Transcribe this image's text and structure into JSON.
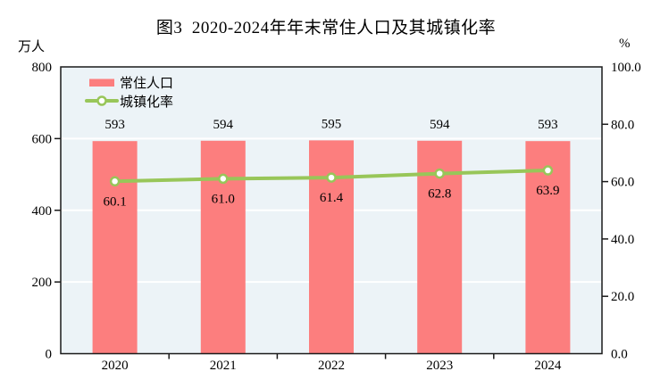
{
  "title": "图3  2020-2024年年末常住人口及其城镇化率",
  "chart_data": {
    "type": "bar",
    "subtype": "bar+line dual-axis",
    "categories": [
      "2020",
      "2021",
      "2022",
      "2023",
      "2024"
    ],
    "series": [
      {
        "name": "常住人口",
        "type": "bar",
        "axis": "left",
        "values": [
          593,
          594,
          595,
          594,
          593
        ],
        "value_labels": [
          "593",
          "594",
          "595",
          "594",
          "593"
        ],
        "color": "#FC7E7E"
      },
      {
        "name": "城镇化率",
        "type": "line",
        "axis": "right",
        "values": [
          60.1,
          61.0,
          61.4,
          62.8,
          63.9
        ],
        "value_labels": [
          "60.1",
          "61.0",
          "61.4",
          "62.8",
          "63.9"
        ],
        "color": "#98C659",
        "marker_fill": "#FFFFFF"
      }
    ],
    "left_axis": {
      "unit": "万人",
      "min": 0,
      "max": 800,
      "ticks": [
        0,
        200,
        400,
        600,
        800
      ],
      "tick_labels": [
        "0",
        "200",
        "400",
        "600",
        "800"
      ]
    },
    "right_axis": {
      "unit": "%",
      "min": 0,
      "max": 100,
      "ticks": [
        0,
        20,
        40,
        60,
        80,
        100
      ],
      "tick_labels": [
        "0.0",
        "20.0",
        "40.0",
        "60.0",
        "80.0",
        "100.0"
      ]
    },
    "grid": true,
    "legend_position": "top-left",
    "colors": {
      "plot_background": "#ECF3F7",
      "gridline": "#FFFFFF",
      "axis_frame": "#1a1a1a",
      "text": "#000000"
    }
  }
}
